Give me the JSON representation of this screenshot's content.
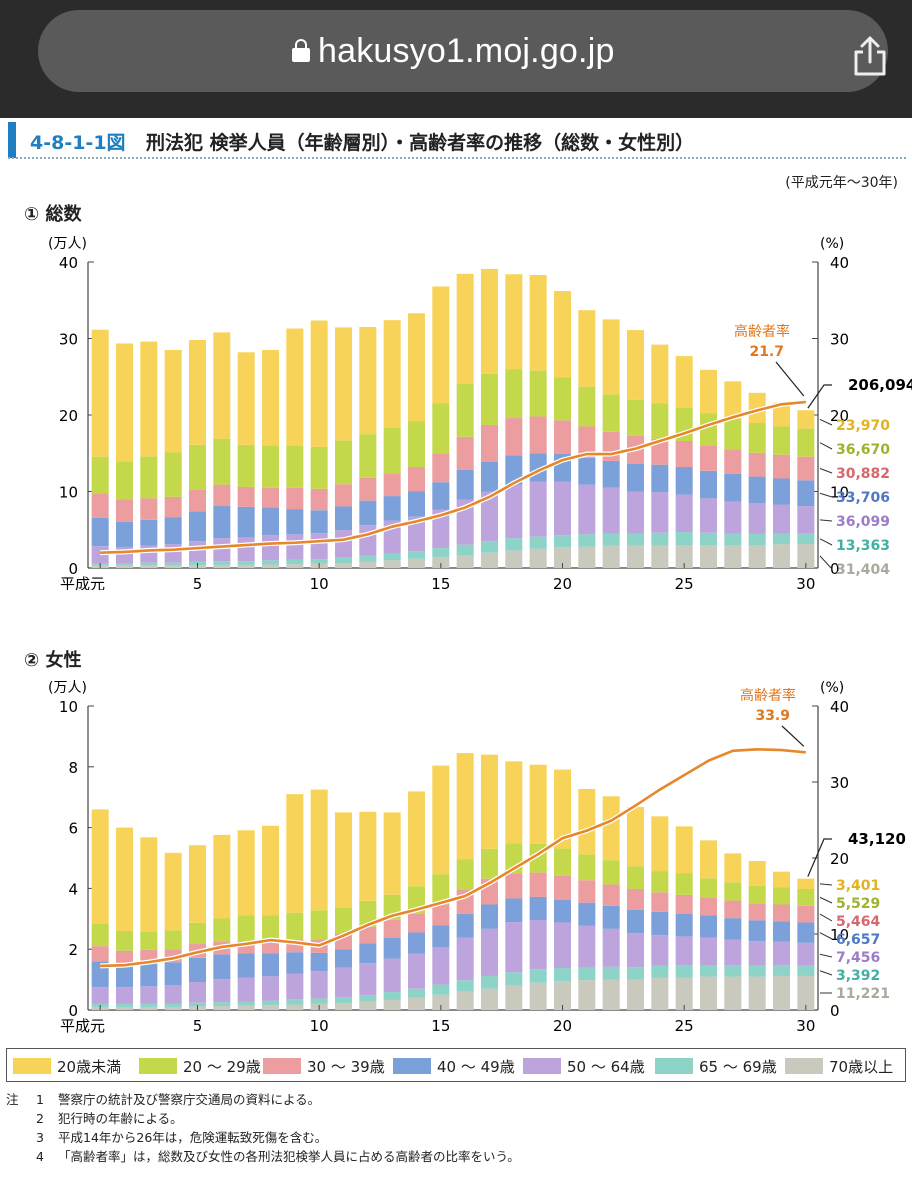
{
  "browser": {
    "url": "hakusyo1.moj.go.jp"
  },
  "figure": {
    "number": "4-8-1-1図",
    "title": "刑法犯 検挙人員（年齢層別）・高齢者率の推移（総数・女性別）",
    "period": "(平成元年～30年)"
  },
  "legend": [
    {
      "label": "20歳未満",
      "color": "#f7d35a"
    },
    {
      "label": "20 ～ 29歳",
      "color": "#c3d94b"
    },
    {
      "label": "30 ～ 39歳",
      "color": "#ec9da0"
    },
    {
      "label": "40 ～ 49歳",
      "color": "#7ca0d9"
    },
    {
      "label": "50 ～ 64歳",
      "color": "#bda4dc"
    },
    {
      "label": "65 ～ 69歳",
      "color": "#8dd3c8"
    },
    {
      "label": "70歳以上",
      "color": "#c9c9bd"
    }
  ],
  "notes": {
    "prefix": "注",
    "items": [
      {
        "n": "1",
        "text": "警察庁の統計及び警察庁交通局の資料による。"
      },
      {
        "n": "2",
        "text": "犯行時の年齢による。"
      },
      {
        "n": "3",
        "text": "平成14年から26年は，危険運転致死傷を含む。"
      },
      {
        "n": "4",
        "text": "「高齢者率」は，総数及び女性の各刑法犯検挙人員に占める高齢者の比率をいう。"
      }
    ]
  },
  "chart_data": [
    {
      "type": "bar",
      "section": "① 総数",
      "stacked": true,
      "y_unit": "(万人)",
      "y2_unit": "(%)",
      "ylim": [
        0,
        40
      ],
      "y_ticks": [
        0,
        10,
        20,
        30,
        40
      ],
      "y2lim": [
        0,
        40
      ],
      "y2_ticks": [
        0,
        10,
        20,
        30,
        40
      ],
      "x_tick_labels": [
        "平成元",
        "5",
        "10",
        "15",
        "20",
        "25",
        "30"
      ],
      "categories": [
        1,
        2,
        3,
        4,
        5,
        6,
        7,
        8,
        9,
        10,
        11,
        12,
        13,
        14,
        15,
        16,
        17,
        18,
        19,
        20,
        21,
        22,
        23,
        24,
        25,
        26,
        27,
        28,
        29,
        30
      ],
      "series": [
        {
          "name": "70歳以上",
          "values": [
            0.3,
            0.3,
            0.3,
            0.3,
            0.35,
            0.4,
            0.4,
            0.45,
            0.5,
            0.55,
            0.65,
            0.8,
            1.0,
            1.2,
            1.4,
            1.7,
            2.0,
            2.3,
            2.5,
            2.7,
            2.8,
            2.9,
            2.9,
            2.9,
            3.0,
            3.0,
            3.0,
            3.0,
            3.1,
            3.14
          ]
        },
        {
          "name": "65 ～ 69歳",
          "values": [
            0.35,
            0.35,
            0.4,
            0.4,
            0.45,
            0.5,
            0.5,
            0.55,
            0.6,
            0.6,
            0.7,
            0.8,
            0.9,
            1.0,
            1.2,
            1.35,
            1.5,
            1.6,
            1.6,
            1.6,
            1.6,
            1.6,
            1.6,
            1.7,
            1.7,
            1.6,
            1.5,
            1.45,
            1.4,
            1.34
          ]
        },
        {
          "name": "50 ～ 64歳",
          "values": [
            2.2,
            2.1,
            2.2,
            2.4,
            2.7,
            3.0,
            3.1,
            3.3,
            3.3,
            3.4,
            3.6,
            4.0,
            4.3,
            4.5,
            5.0,
            5.9,
            6.5,
            7.0,
            7.2,
            7.0,
            6.5,
            6.0,
            5.5,
            5.3,
            4.9,
            4.5,
            4.2,
            4.0,
            3.8,
            3.61
          ]
        },
        {
          "name": "40 ～ 49歳",
          "values": [
            3.7,
            3.3,
            3.4,
            3.5,
            3.9,
            4.2,
            4.0,
            3.6,
            3.3,
            3.0,
            3.1,
            3.2,
            3.2,
            3.3,
            3.6,
            3.9,
            3.9,
            3.8,
            3.7,
            3.6,
            3.5,
            3.5,
            3.6,
            3.6,
            3.6,
            3.6,
            3.6,
            3.5,
            3.4,
            3.37
          ]
        },
        {
          "name": "30 ～ 39歳",
          "values": [
            3.2,
            2.9,
            2.8,
            2.7,
            2.8,
            2.8,
            2.6,
            2.6,
            2.8,
            2.8,
            2.9,
            3.0,
            3.0,
            3.2,
            3.8,
            4.3,
            4.8,
            4.9,
            4.8,
            4.4,
            4.1,
            3.8,
            3.7,
            3.4,
            3.4,
            3.3,
            3.2,
            3.1,
            3.1,
            3.09
          ]
        },
        {
          "name": "20 ～ 29歳",
          "values": [
            4.8,
            5.0,
            5.5,
            5.8,
            5.9,
            6.0,
            5.5,
            5.5,
            5.5,
            5.5,
            5.7,
            5.7,
            5.9,
            6.0,
            6.5,
            6.9,
            6.7,
            6.4,
            6.0,
            5.6,
            5.2,
            4.9,
            4.7,
            4.6,
            4.4,
            4.2,
            4.0,
            3.9,
            3.7,
            3.67
          ]
        },
        {
          "name": "20歳未満",
          "values": [
            16.6,
            15.4,
            15.0,
            13.4,
            13.7,
            13.9,
            12.1,
            12.5,
            15.3,
            16.5,
            14.8,
            14.0,
            14.1,
            14.1,
            15.3,
            14.4,
            13.7,
            12.4,
            12.5,
            11.3,
            10.0,
            9.8,
            9.1,
            7.7,
            6.7,
            5.7,
            4.9,
            3.95,
            3.1,
            2.4
          ]
        }
      ],
      "line": {
        "name": "高齢者率",
        "values": [
          2.0,
          2.1,
          2.3,
          2.4,
          2.6,
          2.8,
          3.0,
          3.2,
          3.3,
          3.5,
          3.7,
          4.4,
          5.4,
          6.1,
          6.9,
          7.9,
          9.3,
          11.1,
          12.7,
          14.1,
          14.9,
          14.9,
          15.6,
          16.6,
          17.6,
          18.7,
          19.7,
          20.6,
          21.4,
          21.7
        ],
        "callout_label": "高齢者率",
        "callout_value": "21.7"
      },
      "total_label": "206,094",
      "value_labels": [
        {
          "text": "23,970",
          "color": "#e3b21f"
        },
        {
          "text": "36,670",
          "color": "#9cb32a"
        },
        {
          "text": "30,882",
          "color": "#d7676c"
        },
        {
          "text": "33,706",
          "color": "#4f78c4"
        },
        {
          "text": "36,099",
          "color": "#9b7cc9"
        },
        {
          "text": "13,363",
          "color": "#3fb0a2"
        },
        {
          "text": "31,404",
          "color": "#a9a99c"
        }
      ]
    },
    {
      "type": "bar",
      "section": "② 女性",
      "stacked": true,
      "y_unit": "(万人)",
      "y2_unit": "(%)",
      "ylim": [
        0,
        10
      ],
      "y_ticks": [
        0,
        2,
        4,
        6,
        8,
        10
      ],
      "y2lim": [
        0,
        40
      ],
      "y2_ticks": [
        0,
        10,
        20,
        30,
        40
      ],
      "x_tick_labels": [
        "平成元",
        "5",
        "10",
        "15",
        "20",
        "25",
        "30"
      ],
      "categories": [
        1,
        2,
        3,
        4,
        5,
        6,
        7,
        8,
        9,
        10,
        11,
        12,
        13,
        14,
        15,
        16,
        17,
        18,
        19,
        20,
        21,
        22,
        23,
        24,
        25,
        26,
        27,
        28,
        29,
        30
      ],
      "series": [
        {
          "name": "70歳以上",
          "values": [
            0.1,
            0.1,
            0.1,
            0.1,
            0.12,
            0.13,
            0.14,
            0.16,
            0.18,
            0.2,
            0.22,
            0.27,
            0.33,
            0.4,
            0.5,
            0.6,
            0.7,
            0.8,
            0.9,
            0.95,
            0.98,
            1.0,
            1.0,
            1.05,
            1.07,
            1.1,
            1.1,
            1.1,
            1.12,
            1.12
          ]
        },
        {
          "name": "65 ～ 69歳",
          "values": [
            0.1,
            0.1,
            0.1,
            0.1,
            0.12,
            0.13,
            0.14,
            0.15,
            0.17,
            0.18,
            0.2,
            0.22,
            0.26,
            0.3,
            0.34,
            0.38,
            0.42,
            0.44,
            0.44,
            0.43,
            0.42,
            0.42,
            0.41,
            0.41,
            0.4,
            0.38,
            0.37,
            0.36,
            0.35,
            0.34
          ]
        },
        {
          "name": "50 ～ 64歳",
          "values": [
            0.55,
            0.55,
            0.58,
            0.62,
            0.68,
            0.75,
            0.78,
            0.8,
            0.85,
            0.9,
            0.98,
            1.05,
            1.1,
            1.15,
            1.22,
            1.4,
            1.55,
            1.65,
            1.62,
            1.5,
            1.38,
            1.25,
            1.12,
            1.0,
            0.95,
            0.9,
            0.85,
            0.8,
            0.78,
            0.75
          ]
        },
        {
          "name": "40 ～ 49歳",
          "values": [
            0.85,
            0.75,
            0.75,
            0.75,
            0.8,
            0.82,
            0.8,
            0.75,
            0.7,
            0.6,
            0.6,
            0.65,
            0.68,
            0.7,
            0.72,
            0.78,
            0.8,
            0.78,
            0.76,
            0.75,
            0.75,
            0.76,
            0.77,
            0.77,
            0.75,
            0.73,
            0.7,
            0.69,
            0.67,
            0.67
          ]
        },
        {
          "name": "30 ～ 39歳",
          "values": [
            0.5,
            0.45,
            0.45,
            0.43,
            0.45,
            0.43,
            0.4,
            0.4,
            0.42,
            0.45,
            0.5,
            0.55,
            0.6,
            0.62,
            0.7,
            0.8,
            0.85,
            0.83,
            0.8,
            0.78,
            0.74,
            0.7,
            0.68,
            0.64,
            0.62,
            0.6,
            0.58,
            0.56,
            0.55,
            0.55
          ]
        },
        {
          "name": "20 ～ 29歳",
          "values": [
            0.75,
            0.65,
            0.6,
            0.62,
            0.7,
            0.75,
            0.85,
            0.85,
            0.88,
            0.95,
            0.88,
            0.85,
            0.82,
            0.9,
            0.98,
            0.99,
            0.98,
            0.98,
            0.95,
            0.9,
            0.85,
            0.8,
            0.75,
            0.7,
            0.7,
            0.62,
            0.6,
            0.58,
            0.56,
            0.55
          ]
        },
        {
          "name": "20歳未満",
          "values": [
            3.75,
            3.4,
            3.1,
            2.55,
            2.55,
            2.75,
            2.8,
            2.95,
            3.9,
            3.97,
            3.12,
            2.93,
            2.71,
            3.12,
            3.58,
            3.5,
            3.1,
            2.7,
            2.6,
            2.6,
            2.15,
            2.1,
            1.95,
            1.8,
            1.55,
            1.25,
            0.95,
            0.81,
            0.52,
            0.34
          ]
        }
      ],
      "line": {
        "name": "高齢者率",
        "values": [
          5.8,
          5.9,
          6.3,
          6.8,
          7.6,
          8.3,
          8.7,
          9.2,
          8.9,
          8.5,
          9.8,
          11.2,
          12.4,
          13.2,
          14.1,
          15.0,
          16.7,
          18.6,
          20.5,
          22.6,
          23.6,
          24.9,
          26.9,
          29.0,
          30.9,
          32.8,
          34.1,
          34.3,
          34.2,
          33.9
        ],
        "callout_label": "高齢者率",
        "callout_value": "33.9"
      },
      "total_label": "43,120",
      "value_labels": [
        {
          "text": "3,401",
          "color": "#e3b21f"
        },
        {
          "text": "5,529",
          "color": "#9cb32a"
        },
        {
          "text": "5,464",
          "color": "#d7676c"
        },
        {
          "text": "6,657",
          "color": "#4f78c4"
        },
        {
          "text": "7,456",
          "color": "#9b7cc9"
        },
        {
          "text": "3,392",
          "color": "#3fb0a2"
        },
        {
          "text": "11,221",
          "color": "#a9a99c"
        }
      ]
    }
  ]
}
